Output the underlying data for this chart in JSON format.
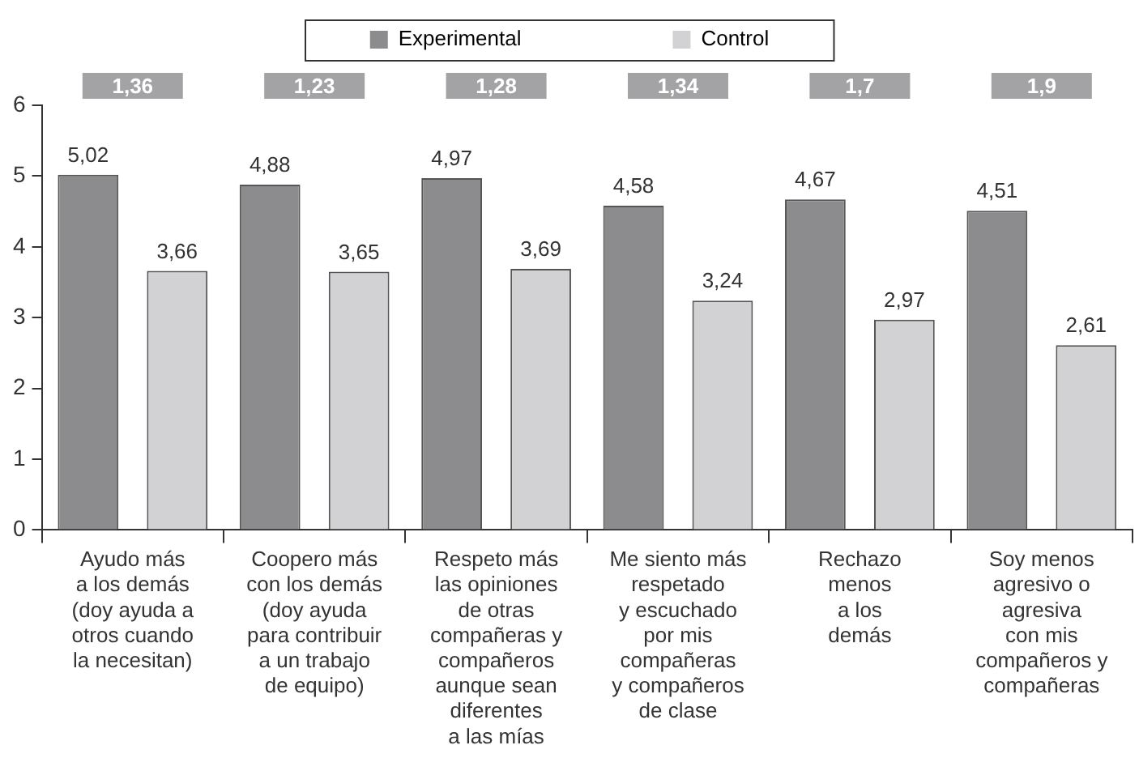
{
  "chart_data": {
    "type": "bar",
    "categories": [
      "Ayudo más\na los demás\n(doy ayuda a\notros cuando\nla necesitan)",
      "Coopero más\ncon los demás\n(doy ayuda\npara contribuir\na un trabajo\nde equipo)",
      "Respeto más\nlas opiniones\nde otras\ncompañeras y\ncompañeros\naunque sean\ndiferentes\na las mías",
      "Me siento más\nrespetado\ny escuchado\npor mis\ncompañeras\ny compañeros\nde clase",
      "Rechazo\nmenos\na los\ndemás",
      "Soy menos\nagresivo o\nagresiva\ncon mis\ncompañeros y\ncompañeras"
    ],
    "series": [
      {
        "name": "Experimental",
        "color": "#8c8c8e",
        "values": [
          5.02,
          4.88,
          4.97,
          4.58,
          4.67,
          4.51
        ],
        "value_labels": [
          "5,02",
          "4,88",
          "4,97",
          "4,58",
          "4,67",
          "4,51"
        ]
      },
      {
        "name": "Control",
        "color": "#d2d2d4",
        "values": [
          3.66,
          3.65,
          3.69,
          3.24,
          2.97,
          2.61
        ],
        "value_labels": [
          "3,66",
          "3,65",
          "3,69",
          "3,24",
          "2,97",
          "2,61"
        ]
      }
    ],
    "annotations": [
      "1,36",
      "1,23",
      "1,28",
      "1,34",
      "1,7",
      "1,9"
    ],
    "ylim": [
      0,
      6
    ],
    "yticks": [
      0,
      1,
      2,
      3,
      4,
      5,
      6
    ],
    "grid": false,
    "legend": "top"
  }
}
